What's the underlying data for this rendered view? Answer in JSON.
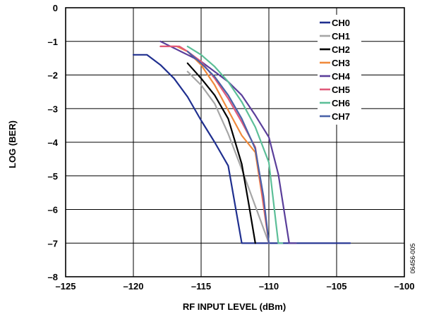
{
  "chart_data": {
    "type": "line",
    "title": "",
    "xlabel": "RF INPUT LEVEL (dBm)",
    "ylabel": "LOG (BER)",
    "xlim": [
      -125,
      -100
    ],
    "ylim": [
      -8,
      0
    ],
    "xticks": [
      -125,
      -120,
      -115,
      -110,
      -105,
      -100
    ],
    "yticks": [
      0,
      -1,
      -2,
      -3,
      -4,
      -5,
      -6,
      -7,
      -8
    ],
    "xtick_labels": [
      "–125",
      "–120",
      "–115",
      "–110",
      "–105",
      "–100"
    ],
    "ytick_labels": [
      "0",
      "–1",
      "–2",
      "–3",
      "–4",
      "–5",
      "–6",
      "–7",
      "–8"
    ],
    "grid": true,
    "legend_position": "top-right",
    "figure_id": "06456-005",
    "series": [
      {
        "name": "CH0",
        "color": "#1f2f8f",
        "x": [
          -120,
          -119,
          -118,
          -117,
          -116,
          -115,
          -114,
          -113,
          -112,
          -111,
          -110,
          -109,
          -108,
          -107,
          -106,
          -105,
          -104
        ],
        "y": [
          -1.4,
          -1.4,
          -1.7,
          -2.1,
          -2.65,
          -3.35,
          -4.0,
          -4.7,
          -7.0,
          -7.0,
          -7.0,
          -7.0,
          -7.0,
          -7.0,
          -7.0,
          -7.0,
          -7.0
        ]
      },
      {
        "name": "CH1",
        "color": "#a6a6a6",
        "x": [
          -116,
          -115,
          -114,
          -113,
          -112,
          -111,
          -110
        ],
        "y": [
          -1.9,
          -2.3,
          -2.85,
          -3.75,
          -4.8,
          -5.9,
          -7.0
        ]
      },
      {
        "name": "CH2",
        "color": "#000000",
        "x": [
          -116,
          -115,
          -114,
          -113,
          -112,
          -111.5,
          -111
        ],
        "y": [
          -1.65,
          -2.1,
          -2.6,
          -3.3,
          -4.65,
          -5.8,
          -7.0
        ]
      },
      {
        "name": "CH3",
        "color": "#f08a3c",
        "x": [
          -118,
          -116.8,
          -116,
          -115,
          -114,
          -113,
          -112,
          -111,
          -110.5,
          -110
        ],
        "y": [
          -1.15,
          -1.15,
          -1.3,
          -1.7,
          -2.3,
          -3.05,
          -3.8,
          -4.3,
          -5.6,
          -7.0
        ]
      },
      {
        "name": "CH4",
        "color": "#5a3e9a",
        "x": [
          -118,
          -117,
          -116,
          -115,
          -114,
          -113,
          -112,
          -111,
          -110,
          -109.3,
          -108.5,
          -108
        ],
        "y": [
          -1.0,
          -1.2,
          -1.4,
          -1.6,
          -1.9,
          -2.2,
          -2.6,
          -3.2,
          -3.85,
          -4.95,
          -7.0,
          -7.0
        ]
      },
      {
        "name": "CH5",
        "color": "#e05a7a",
        "x": [
          -118,
          -116.6,
          -116,
          -115,
          -114,
          -113,
          -112,
          -111,
          -110.5,
          -110
        ],
        "y": [
          -1.15,
          -1.15,
          -1.3,
          -1.6,
          -2.1,
          -2.7,
          -3.4,
          -4.15,
          -5.5,
          -7.0
        ]
      },
      {
        "name": "CH6",
        "color": "#5cbf98",
        "x": [
          -116,
          -115,
          -114,
          -113,
          -112,
          -111,
          -110,
          -109.3,
          -109
        ],
        "y": [
          -1.15,
          -1.4,
          -1.75,
          -2.2,
          -2.8,
          -3.55,
          -4.6,
          -7.0,
          -7.0
        ]
      },
      {
        "name": "CH7",
        "color": "#4a62a8",
        "x": [
          -116,
          -115,
          -114,
          -113,
          -112,
          -111,
          -110.4,
          -110
        ],
        "y": [
          -1.3,
          -1.65,
          -2.05,
          -2.6,
          -3.3,
          -4.2,
          -5.6,
          -7.0
        ]
      }
    ]
  }
}
